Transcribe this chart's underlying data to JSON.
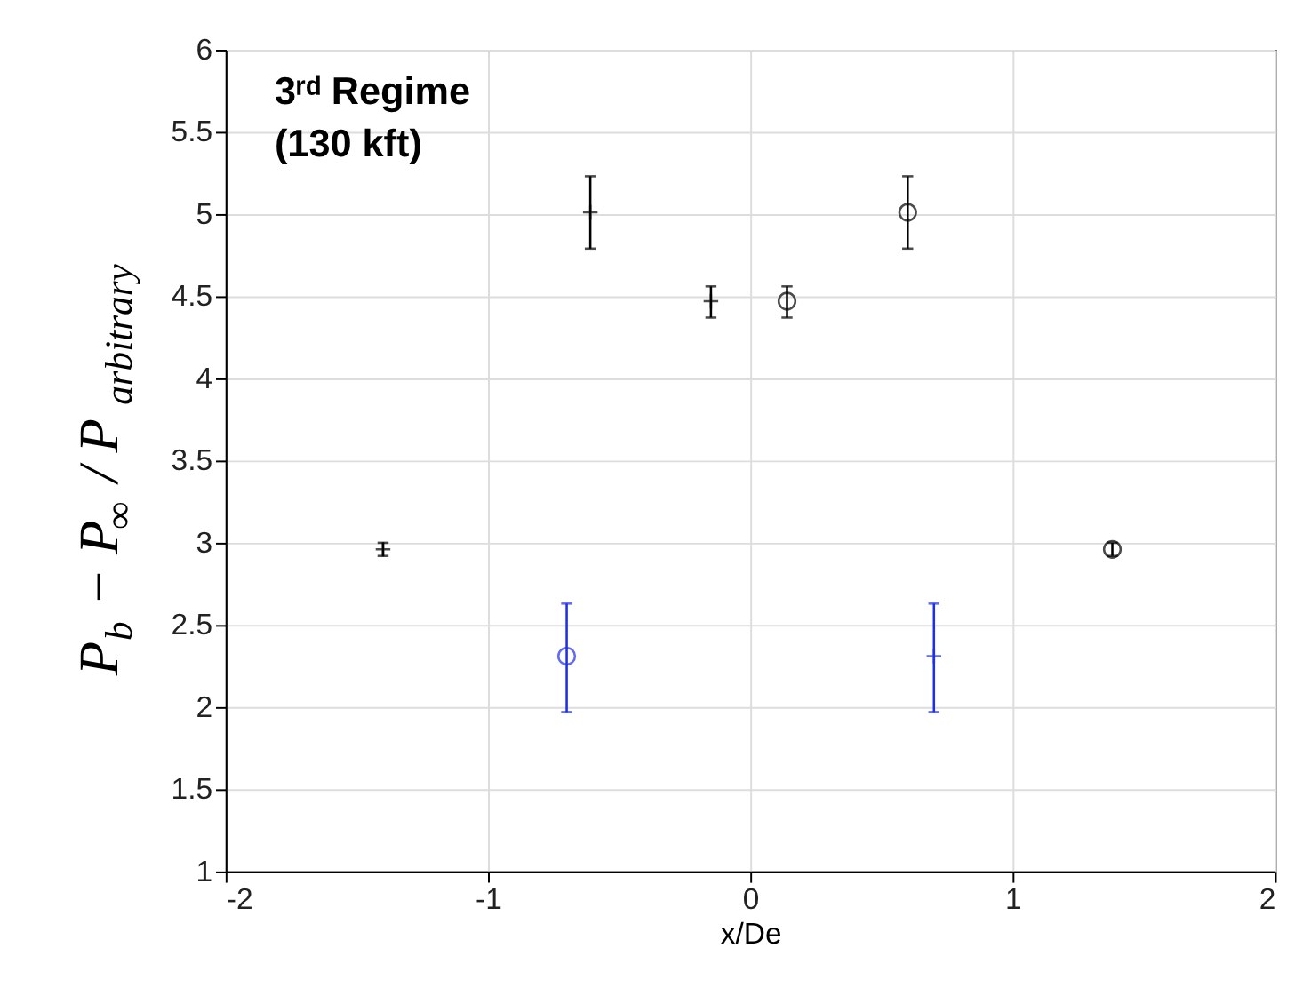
{
  "chart_data": {
    "type": "scatter",
    "xlabel": "x/De",
    "ylabel": "P$_{b}$ − P$_{∞}$ / P$_{arbitrary}$",
    "annotations": [
      "3ʳᵈ Regime",
      "(130 kft)"
    ],
    "xlim": [
      -2,
      2
    ],
    "xticks": [
      -2,
      -1,
      0,
      1,
      2
    ],
    "ylim": [
      1,
      6
    ],
    "yticks": [
      1,
      1.5,
      2,
      2.5,
      3,
      3.5,
      4,
      4.5,
      5,
      5.5,
      6
    ],
    "grid": true,
    "series": [
      {
        "color": "#000000",
        "marker": "cross",
        "x": [
          -1.4,
          -0.61,
          -0.15
        ],
        "values": [
          2.96,
          5.01,
          4.47
        ],
        "errors": [
          [
            2.92,
            3.0
          ],
          [
            4.79,
            5.23
          ],
          [
            4.37,
            4.56
          ]
        ]
      },
      {
        "color": "#000000",
        "marker": "circle",
        "x": [
          0.14,
          0.6,
          1.38
        ],
        "values": [
          4.47,
          5.01,
          2.96
        ],
        "errors": [
          [
            4.37,
            4.56
          ],
          [
            4.79,
            5.23
          ],
          [
            2.92,
            3.0
          ]
        ]
      },
      {
        "color": "#1f2ee8",
        "marker": "circle",
        "x": [
          -0.7
        ],
        "values": [
          2.31
        ],
        "errors": [
          [
            1.97,
            2.63
          ]
        ]
      },
      {
        "color": "#1f2ee8",
        "marker": "cross",
        "x": [
          0.7
        ],
        "values": [
          2.31
        ],
        "errors": [
          [
            1.97,
            2.63
          ]
        ]
      }
    ]
  }
}
